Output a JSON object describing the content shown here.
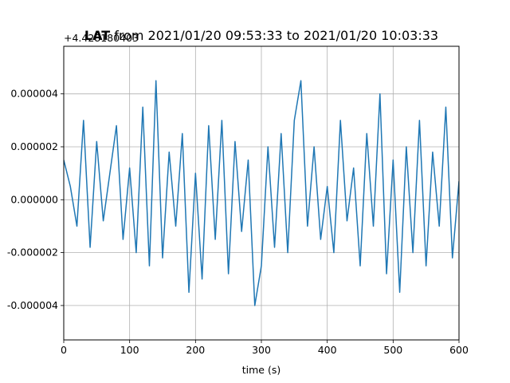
{
  "chart_data": {
    "type": "line",
    "title_parts": {
      "bold": "LAT",
      "rest": " from 2021/01/20 09:53:33 to 2021/01/20 10:03:33"
    },
    "offset_label": "+4.428180403",
    "xlabel": "time (s)",
    "ylabel": "",
    "xlim": [
      0,
      600
    ],
    "ylim": [
      -5.3e-06,
      5.8e-06
    ],
    "xticks": [
      0,
      100,
      200,
      300,
      400,
      500,
      600
    ],
    "xtick_labels": [
      "0",
      "100",
      "200",
      "300",
      "400",
      "500",
      "600"
    ],
    "yticks": [
      -4e-06,
      -2e-06,
      0.0,
      2e-06,
      4e-06
    ],
    "ytick_labels": [
      "-0.000004",
      "-0.000002",
      "0.000000",
      "0.000002",
      "0.000004"
    ],
    "grid": true,
    "series": [
      {
        "color": "#1f77b4",
        "x": [
          0,
          10,
          20,
          30,
          40,
          50,
          60,
          70,
          80,
          90,
          100,
          110,
          120,
          130,
          140,
          150,
          160,
          170,
          180,
          190,
          200,
          210,
          220,
          230,
          240,
          250,
          260,
          270,
          280,
          290,
          300,
          310,
          320,
          330,
          340,
          350,
          360,
          370,
          380,
          390,
          400,
          410,
          420,
          430,
          440,
          450,
          460,
          470,
          480,
          490,
          500,
          510,
          520,
          530,
          540,
          550,
          560,
          570,
          580,
          590,
          600
        ],
        "y": [
          1.5e-06,
          5e-07,
          -1e-06,
          3e-06,
          -1.8e-06,
          2.2e-06,
          -8e-07,
          1e-06,
          2.8e-06,
          -1.5e-06,
          1.2e-06,
          -2e-06,
          3.5e-06,
          -2.5e-06,
          4.5e-06,
          -2.2e-06,
          1.8e-06,
          -1e-06,
          2.5e-06,
          -3.5e-06,
          1e-06,
          -3e-06,
          2.8e-06,
          -1.5e-06,
          3e-06,
          -2.8e-06,
          2.2e-06,
          -1.2e-06,
          1.5e-06,
          -4e-06,
          -2.5e-06,
          2e-06,
          -1.8e-06,
          2.5e-06,
          -2e-06,
          3e-06,
          4.5e-06,
          -1e-06,
          2e-06,
          -1.5e-06,
          5e-07,
          -2e-06,
          3e-06,
          -8e-07,
          1.2e-06,
          -2.5e-06,
          2.5e-06,
          -1e-06,
          4e-06,
          -2.8e-06,
          1.5e-06,
          -3.5e-06,
          2e-06,
          -2e-06,
          3e-06,
          -2.5e-06,
          1.8e-06,
          -1e-06,
          3.5e-06,
          -2.2e-06,
          7e-07
        ]
      }
    ]
  }
}
